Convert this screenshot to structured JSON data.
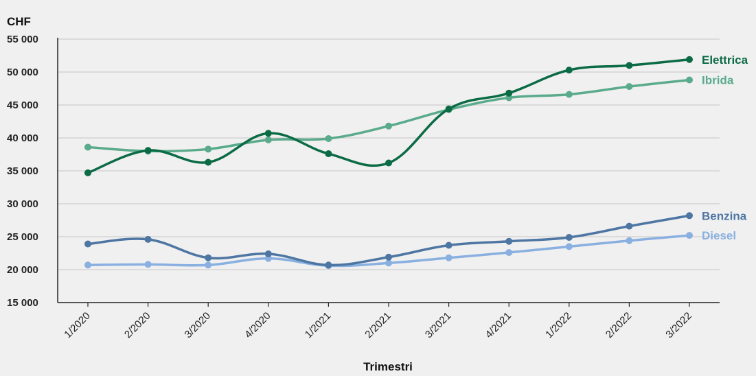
{
  "chart_data": {
    "type": "line",
    "unit_label": "CHF",
    "xlabel": "Trimestri",
    "ylabel": "",
    "categories": [
      "1/2020",
      "2/2020",
      "3/2020",
      "4/2020",
      "1/2021",
      "2/2021",
      "3/2021",
      "4/2021",
      "1/2022",
      "2/2022",
      "3/2022"
    ],
    "ylim": [
      15000,
      55000
    ],
    "yticks": [
      15000,
      20000,
      25000,
      30000,
      35000,
      40000,
      45000,
      50000,
      55000
    ],
    "ytick_labels": [
      "15 000",
      "20 000",
      "25 000",
      "30 000",
      "35 000",
      "40 000",
      "45 000",
      "50 000",
      "55 000"
    ],
    "grid": true,
    "legend": "direct labels at line ends",
    "series": [
      {
        "name": "Elettrica",
        "color": "#0b6b45",
        "values": [
          34700,
          38100,
          36300,
          40700,
          37600,
          36200,
          44400,
          46800,
          50300,
          51000,
          51900
        ]
      },
      {
        "name": "Ibrida",
        "color": "#5aaa8c",
        "values": [
          38600,
          38000,
          38300,
          39700,
          39900,
          41800,
          44300,
          46100,
          46600,
          47800,
          48800
        ]
      },
      {
        "name": "Benzina",
        "color": "#4e76a3",
        "values": [
          23900,
          24600,
          21800,
          22400,
          20700,
          21900,
          23700,
          24300,
          24900,
          26600,
          28200
        ]
      },
      {
        "name": "Diesel",
        "color": "#89b0e0",
        "values": [
          20700,
          20800,
          20700,
          21700,
          20600,
          21000,
          21800,
          22600,
          23500,
          24400,
          25200
        ]
      }
    ]
  }
}
